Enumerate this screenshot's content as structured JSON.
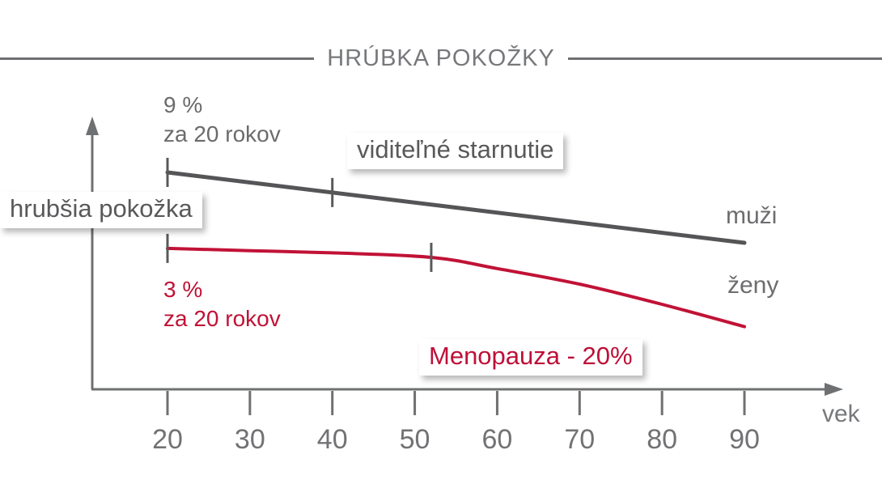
{
  "title": "HRÚBKA POKOŽKY",
  "colors": {
    "men_line": "#555557",
    "women_line": "#c11236",
    "axis": "#6f7072",
    "text_gray": "#6b6b6e",
    "red_text": "#be1038"
  },
  "labels": {
    "men": "muži",
    "women": "ženy",
    "x_axis": "vek",
    "men_rate": "9 %\nza 20 rokov",
    "women_rate": "3 %\nza 20 rokov",
    "visible_aging_box": "viditeľné starnutie",
    "thicker_skin_box": "hrubšia pokožka",
    "menopause_box": "Menopauza - 20%"
  },
  "chart_data": {
    "type": "line",
    "title": "HRÚBKA POKOŽKY",
    "xlabel": "vek",
    "ylabel": "",
    "x_ticks": [
      20,
      30,
      40,
      50,
      60,
      70,
      80,
      90
    ],
    "x_range": [
      20,
      90
    ],
    "y_axis_note": "no numeric scale shown; relative skin thickness, arbitrary units",
    "grid": false,
    "legend_position": "right-of-lines",
    "series": [
      {
        "name": "muži",
        "color": "#555557",
        "x": [
          20,
          90
        ],
        "y": [
          100,
          68.5
        ],
        "markers": [
          [
            20,
            100
          ],
          [
            40,
            91
          ]
        ]
      },
      {
        "name": "ženy",
        "color": "#c11236",
        "x": [
          20,
          30,
          40,
          52,
          60,
          70,
          80,
          90
        ],
        "y": [
          66,
          65,
          64,
          62,
          57,
          50,
          41,
          31
        ],
        "markers": [
          [
            20,
            66
          ],
          [
            52,
            62
          ]
        ]
      }
    ],
    "annotations": [
      "9 % za 20 rokov",
      "3 % za 20 rokov",
      "viditeľné starnutie",
      "hrubšia pokožka",
      "Menopauza - 20%"
    ]
  }
}
